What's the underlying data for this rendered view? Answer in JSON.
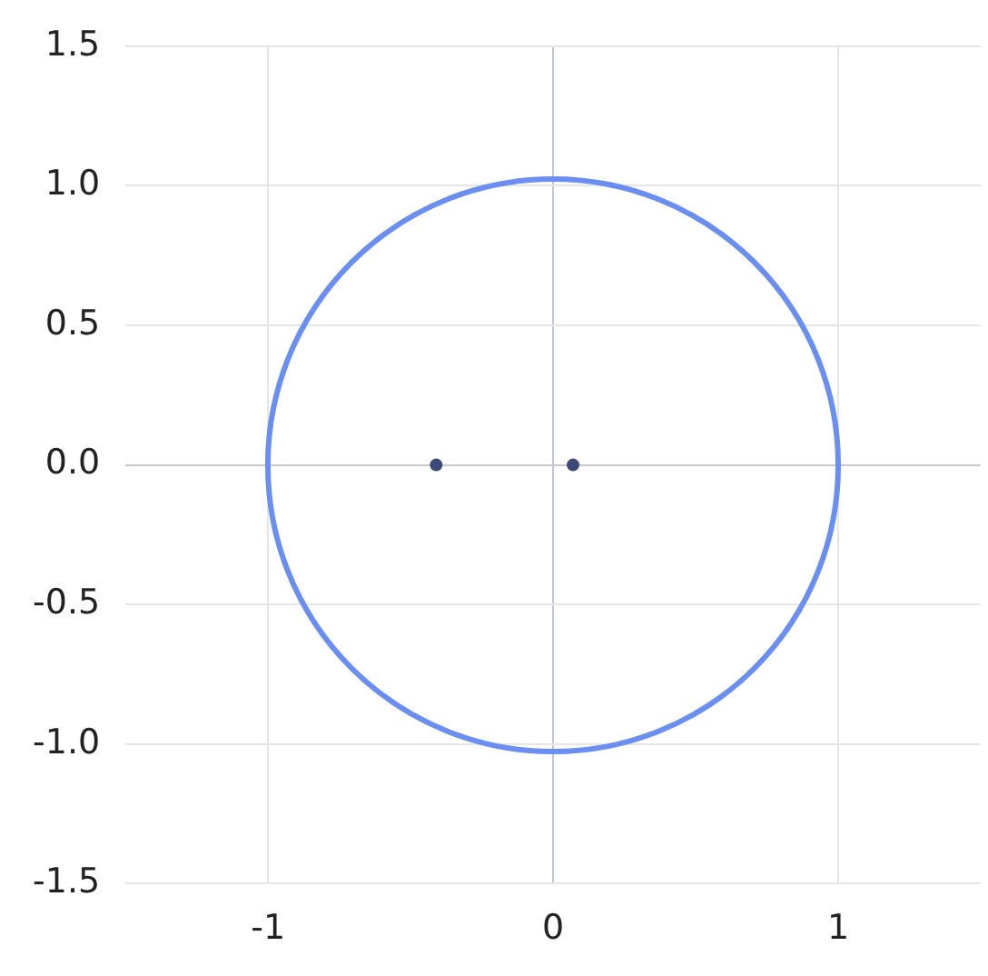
{
  "chart_data": {
    "type": "scatter",
    "xlim": [
      -1.5,
      1.5
    ],
    "xticks": [
      -1,
      0,
      1
    ],
    "ylim": [
      -1.5,
      1.5
    ],
    "yticks": [
      {
        "value": -1.5,
        "label": "-1.5"
      },
      {
        "value": -1,
        "label": "-1.0"
      },
      {
        "value": -0.5,
        "label": "-0.5"
      },
      {
        "value": 0,
        "label": "0.0"
      },
      {
        "value": 0.5,
        "label": "0.5"
      },
      {
        "value": 1,
        "label": "1.0"
      },
      {
        "value": 1.5,
        "label": "1.5"
      }
    ],
    "grid": true,
    "legend": false,
    "series": [
      {
        "type": "scatter",
        "color": "#3d4a78",
        "marker": "circle",
        "x": [
          -0.41,
          0.07
        ],
        "values": [
          0,
          0
        ]
      }
    ]
  }
}
